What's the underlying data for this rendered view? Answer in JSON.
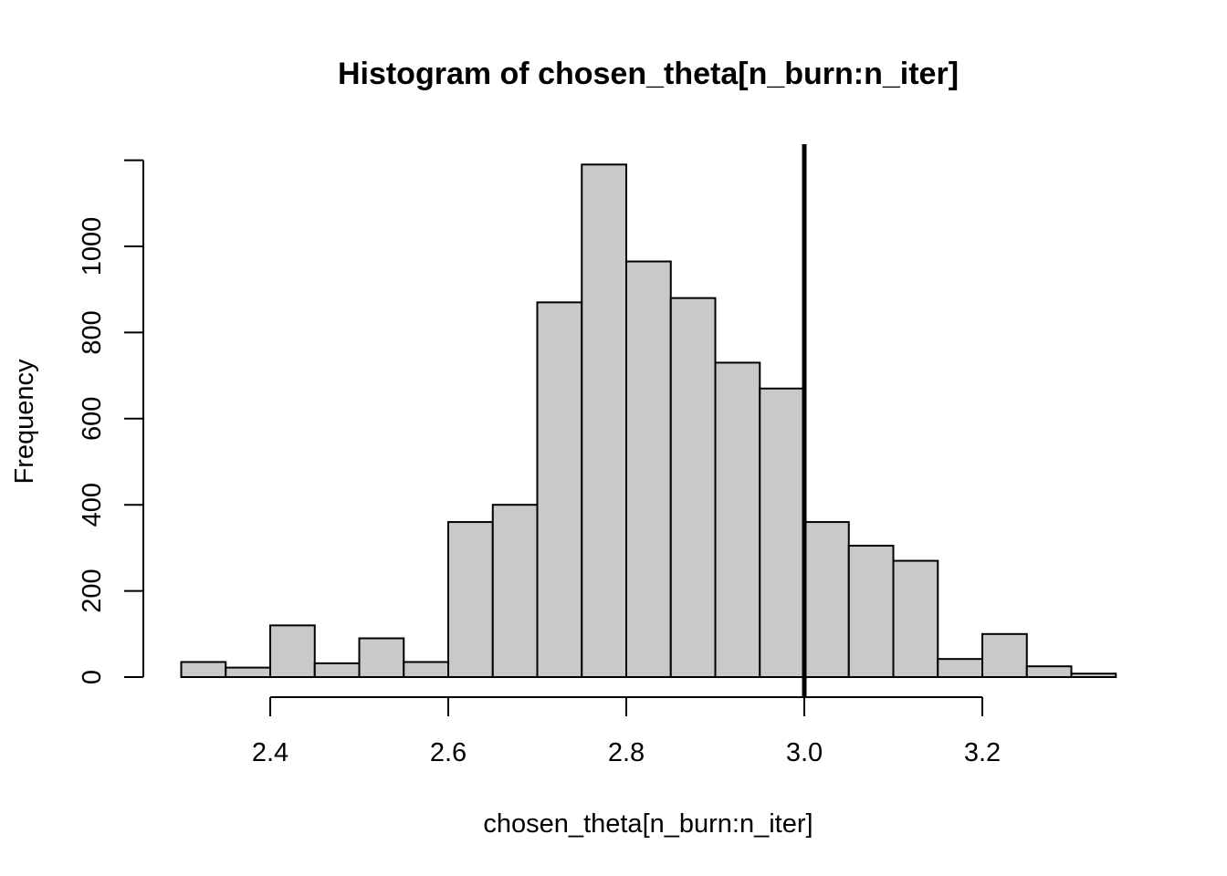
{
  "chart_data": {
    "type": "bar",
    "title": "Histogram of chosen_theta[n_burn:n_iter]",
    "xlabel": "chosen_theta[n_burn:n_iter]",
    "ylabel": "Frequency",
    "bin_width": 0.05,
    "bin_edges": [
      2.3,
      2.35,
      2.4,
      2.45,
      2.5,
      2.55,
      2.6,
      2.65,
      2.7,
      2.75,
      2.8,
      2.85,
      2.9,
      2.95,
      3.0,
      3.05,
      3.1,
      3.15,
      3.2,
      3.25,
      3.3,
      3.35
    ],
    "values": [
      35,
      22,
      120,
      32,
      90,
      35,
      360,
      400,
      870,
      1190,
      965,
      880,
      730,
      670,
      360,
      305,
      270,
      42,
      100,
      25,
      8
    ],
    "xlim": [
      2.4,
      3.2
    ],
    "ylim": [
      0,
      1200
    ],
    "xticks": [
      "2.4",
      "2.6",
      "2.8",
      "3.0",
      "3.2"
    ],
    "yticks": [
      "0",
      "200",
      "400",
      "600",
      "800",
      "1000"
    ],
    "vline": 3.0,
    "grid": false
  },
  "colors": {
    "bar_fill": "#c9c9c9",
    "bar_stroke": "#000000",
    "vline": "#000000"
  }
}
